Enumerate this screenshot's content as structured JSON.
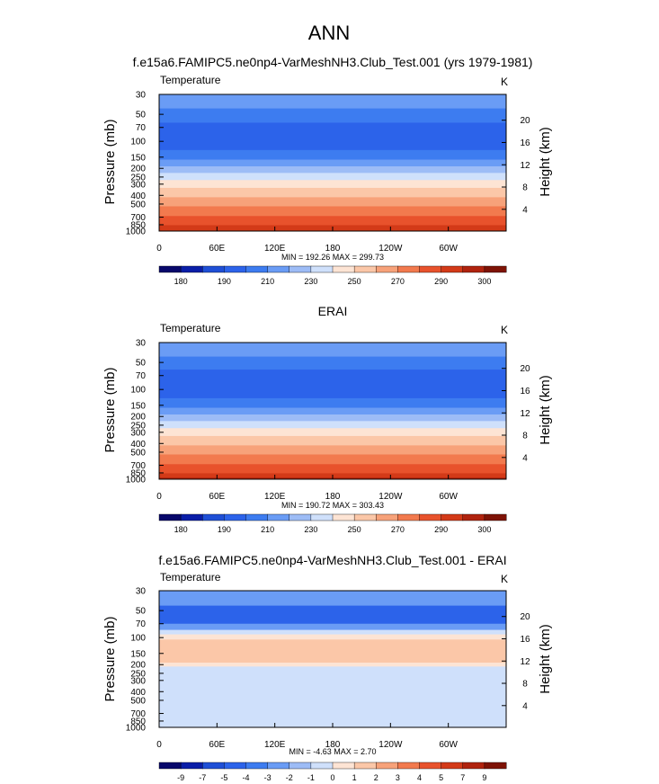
{
  "page_title": "ANN",
  "colors": {
    "abs": [
      "#08086b",
      "#0a1ea8",
      "#1f4fd6",
      "#2c63ea",
      "#3d7cf0",
      "#6a9cf5",
      "#9dbcf6",
      "#cfe0fb",
      "#fde4d4",
      "#fbc7a8",
      "#f7a27a",
      "#f27a4e",
      "#e8522c",
      "#d33a18",
      "#b0230e",
      "#7e1306"
    ],
    "diff": [
      "#08086b",
      "#0a1ea8",
      "#1f4fd6",
      "#2c63ea",
      "#3d7cf0",
      "#6a9cf5",
      "#9dbcf6",
      "#cfe0fb",
      "#fde4d4",
      "#fbc7a8",
      "#f7a27a",
      "#f27a4e",
      "#e8522c",
      "#d33a18",
      "#b0230e",
      "#7e1306"
    ]
  },
  "chart_data": [
    {
      "type": "heatmap",
      "title": "f.e15a6.FAMIPC5.ne0np4-VarMeshNH3.Club_Test.001 (yrs 1979-1981)",
      "left_label": "Temperature",
      "units": "K",
      "ylabel": "Pressure (mb)",
      "ylabel_right": "Height (km)",
      "pressure_ticks": [
        30,
        50,
        70,
        100,
        150,
        200,
        250,
        300,
        400,
        500,
        700,
        850,
        1000
      ],
      "height_ticks": [
        4,
        8,
        12,
        16,
        20
      ],
      "x_ticks": [
        "0",
        "60E",
        "120E",
        "180",
        "120W",
        "60W"
      ],
      "stats": "MIN = 192.26  MAX = 299.73",
      "colorbar_ticks": [
        "180",
        "190",
        "210",
        "230",
        "250",
        "270",
        "290",
        "300"
      ],
      "bands": [
        {
          "p": 30,
          "c": 5
        },
        {
          "p": 43,
          "c": 4
        },
        {
          "p": 62,
          "c": 3
        },
        {
          "p": 125,
          "c": 4
        },
        {
          "p": 160,
          "c": 5
        },
        {
          "p": 190,
          "c": 6
        },
        {
          "p": 225,
          "c": 7
        },
        {
          "p": 270,
          "c": 8
        },
        {
          "p": 330,
          "c": 9
        },
        {
          "p": 420,
          "c": 10
        },
        {
          "p": 530,
          "c": 11
        },
        {
          "p": 680,
          "c": 12
        },
        {
          "p": 860,
          "c": 13
        },
        {
          "p": 1000
        }
      ]
    },
    {
      "type": "heatmap",
      "title": "ERAI",
      "left_label": "Temperature",
      "units": "K",
      "ylabel": "Pressure (mb)",
      "ylabel_right": "Height (km)",
      "pressure_ticks": [
        30,
        50,
        70,
        100,
        150,
        200,
        250,
        300,
        400,
        500,
        700,
        850,
        1000
      ],
      "height_ticks": [
        4,
        8,
        12,
        16,
        20
      ],
      "x_ticks": [
        "0",
        "60E",
        "120E",
        "180",
        "120W",
        "60W"
      ],
      "stats": "MIN = 190.72  MAX = 303.43",
      "colorbar_ticks": [
        "180",
        "190",
        "210",
        "230",
        "250",
        "270",
        "290",
        "300"
      ],
      "bands": [
        {
          "p": 30,
          "c": 5
        },
        {
          "p": 43,
          "c": 4
        },
        {
          "p": 60,
          "c": 3
        },
        {
          "p": 125,
          "c": 4
        },
        {
          "p": 160,
          "c": 5
        },
        {
          "p": 190,
          "c": 6
        },
        {
          "p": 225,
          "c": 7
        },
        {
          "p": 270,
          "c": 8
        },
        {
          "p": 330,
          "c": 9
        },
        {
          "p": 420,
          "c": 10
        },
        {
          "p": 530,
          "c": 11
        },
        {
          "p": 680,
          "c": 12
        },
        {
          "p": 860,
          "c": 13
        },
        {
          "p": 960,
          "c": 14
        },
        {
          "p": 1000
        }
      ]
    },
    {
      "type": "heatmap",
      "title": "f.e15a6.FAMIPC5.ne0np4-VarMeshNH3.Club_Test.001 - ERAI",
      "left_label": "Temperature",
      "units": "K",
      "ylabel": "Pressure (mb)",
      "ylabel_right": "Height (km)",
      "pressure_ticks": [
        30,
        50,
        70,
        100,
        150,
        200,
        250,
        300,
        400,
        500,
        700,
        850,
        1000
      ],
      "height_ticks": [
        4,
        8,
        12,
        16,
        20
      ],
      "x_ticks": [
        "0",
        "60E",
        "120E",
        "180",
        "120W",
        "60W"
      ],
      "stats": "MIN =  -4.63  MAX =   2.70",
      "colorbar_ticks": [
        "-9",
        "-7",
        "-5",
        "-4",
        "-3",
        "-2",
        "-1",
        "0",
        "1",
        "2",
        "3",
        "4",
        "5",
        "7",
        "9"
      ],
      "bands": [
        {
          "p": 30,
          "c": 5
        },
        {
          "p": 44,
          "c": 3
        },
        {
          "p": 70,
          "c": 5
        },
        {
          "p": 82,
          "c": 7
        },
        {
          "p": 92,
          "c": 8
        },
        {
          "p": 105,
          "c": 9
        },
        {
          "p": 190,
          "c": 8
        },
        {
          "p": 210,
          "c": 7
        },
        {
          "p": 1000
        }
      ]
    }
  ]
}
